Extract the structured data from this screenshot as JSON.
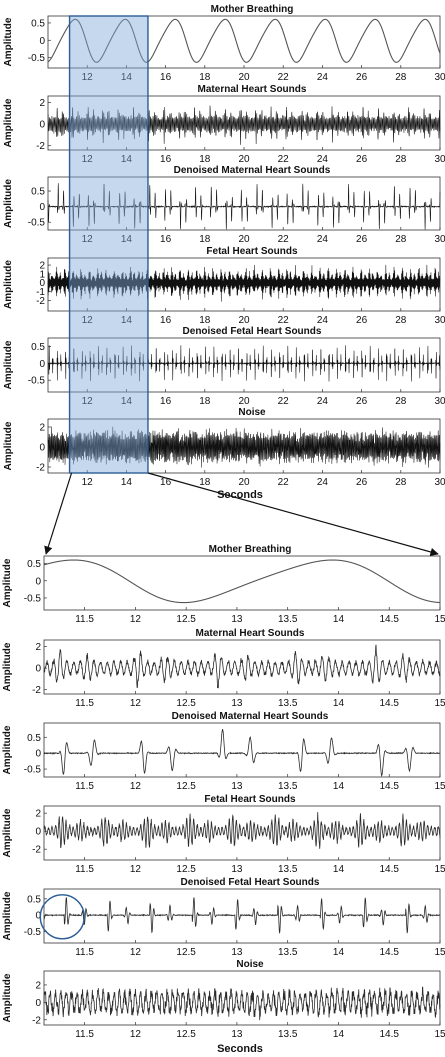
{
  "figure": {
    "xlabel_top": "Seconds",
    "xlabel_bottom": "Seconds",
    "colors": {
      "trace": "#111111",
      "trace_zoom": "#2a2a2a",
      "breath": "#555555",
      "highlight_fill": "#7fa8d6",
      "highlight_stroke": "#2b5d96",
      "circle": "#2b5d96",
      "frame": "#333333"
    }
  },
  "chart_data": [
    {
      "type": "line",
      "panel": "overview",
      "title": "Mother Breathing",
      "ylabel": "Amplitude",
      "xlim": [
        10,
        30
      ],
      "ylim": [
        -0.8,
        0.7
      ],
      "xticks": [
        12,
        14,
        16,
        18,
        20,
        22,
        24,
        26,
        28,
        30
      ],
      "yticks": [
        0.5,
        0,
        -0.5
      ],
      "signal": "breathing",
      "highlight": [
        11.1,
        15.1
      ]
    },
    {
      "type": "line",
      "panel": "overview",
      "title": "Maternal Heart Sounds",
      "ylabel": "Amplitude",
      "xlim": [
        10,
        30
      ],
      "ylim": [
        -2.4,
        2.6
      ],
      "xticks": [
        12,
        14,
        16,
        18,
        20,
        22,
        24,
        26,
        28,
        30
      ],
      "yticks": [
        2,
        0,
        -2
      ],
      "signal": "maternal_heart",
      "highlight": [
        11.1,
        15.1
      ]
    },
    {
      "type": "line",
      "panel": "overview",
      "title": "Denoised Maternal Heart Sounds",
      "ylabel": "Amplitude",
      "xlim": [
        10,
        30
      ],
      "ylim": [
        -0.75,
        0.95
      ],
      "xticks": [
        12,
        14,
        16,
        18,
        20,
        22,
        24,
        26,
        28,
        30
      ],
      "yticks": [
        0.5,
        0,
        -0.5
      ],
      "signal": "denoised_maternal",
      "highlight": [
        11.1,
        15.1
      ]
    },
    {
      "type": "line",
      "panel": "overview",
      "title": "Fetal Heart Sounds",
      "ylabel": "Amplitude",
      "xlim": [
        10,
        30
      ],
      "ylim": [
        -3.2,
        2.8
      ],
      "xticks": [
        12,
        14,
        16,
        18,
        20,
        22,
        24,
        26,
        28,
        30
      ],
      "yticks": [
        2,
        1,
        0,
        -1,
        -2
      ],
      "signal": "fetal_heart",
      "highlight": [
        11.1,
        15.1
      ]
    },
    {
      "type": "line",
      "panel": "overview",
      "title": "Denoised Fetal Heart Sounds",
      "ylabel": "Amplitude",
      "xlim": [
        10,
        30
      ],
      "ylim": [
        -0.85,
        0.75
      ],
      "xticks": [
        12,
        14,
        16,
        18,
        20,
        22,
        24,
        26,
        28,
        30
      ],
      "yticks": [
        0.5,
        0,
        -0.5
      ],
      "signal": "denoised_fetal",
      "highlight": [
        11.1,
        15.1
      ]
    },
    {
      "type": "line",
      "panel": "overview",
      "title": "Noise",
      "ylabel": "Amplitude",
      "xlim": [
        10,
        30
      ],
      "ylim": [
        -2.6,
        2.8
      ],
      "xticks": [
        12,
        14,
        16,
        18,
        20,
        22,
        24,
        26,
        28,
        30
      ],
      "yticks": [
        2,
        0,
        -2
      ],
      "signal": "noise",
      "highlight": [
        11.1,
        15.1
      ]
    },
    {
      "type": "line",
      "panel": "zoom",
      "title": "Mother Breathing",
      "ylabel": "Amplitude",
      "xlim": [
        11.1,
        15
      ],
      "ylim": [
        -0.85,
        0.72
      ],
      "xticks": [
        11.5,
        12,
        12.5,
        13,
        13.5,
        14,
        14.5,
        15
      ],
      "yticks": [
        0.5,
        0,
        -0.5
      ],
      "signal": "breathing"
    },
    {
      "type": "line",
      "panel": "zoom",
      "title": "Maternal Heart Sounds",
      "ylabel": "Amplitude",
      "xlim": [
        11.1,
        15
      ],
      "ylim": [
        -2.4,
        2.6
      ],
      "xticks": [
        11.5,
        12,
        12.5,
        13,
        13.5,
        14,
        14.5,
        15
      ],
      "yticks": [
        2,
        0,
        -2
      ],
      "signal": "maternal_heart"
    },
    {
      "type": "line",
      "panel": "zoom",
      "title": "Denoised Maternal Heart Sounds",
      "ylabel": "Amplitude",
      "xlim": [
        11.1,
        15
      ],
      "ylim": [
        -0.75,
        0.95
      ],
      "xticks": [
        11.5,
        12,
        12.5,
        13,
        13.5,
        14,
        14.5,
        15
      ],
      "yticks": [
        0.5,
        0,
        -0.5
      ],
      "signal": "denoised_maternal"
    },
    {
      "type": "line",
      "panel": "zoom",
      "title": "Fetal Heart Sounds",
      "ylabel": "Amplitude",
      "xlim": [
        11.1,
        15
      ],
      "ylim": [
        -3.2,
        2.8
      ],
      "xticks": [
        11.5,
        12,
        12.5,
        13,
        13.5,
        14,
        14.5,
        15
      ],
      "yticks": [
        2,
        0,
        -2
      ],
      "signal": "fetal_heart"
    },
    {
      "type": "line",
      "panel": "zoom",
      "title": "Denoised Fetal Heart Sounds",
      "ylabel": "Amplitude",
      "xlim": [
        11.1,
        15
      ],
      "ylim": [
        -0.85,
        0.8
      ],
      "xticks": [
        11.5,
        12,
        12.5,
        13,
        13.5,
        14,
        14.5,
        15
      ],
      "yticks": [
        0.5,
        0,
        -0.5
      ],
      "signal": "denoised_fetal",
      "circle_center": [
        11.28,
        -0.05
      ]
    },
    {
      "type": "line",
      "panel": "zoom",
      "title": "Noise",
      "ylabel": "Amplitude",
      "xlim": [
        11.1,
        15
      ],
      "ylim": [
        -2.6,
        3.6
      ],
      "xticks": [
        11.5,
        12,
        12.5,
        13,
        13.5,
        14,
        14.5,
        15
      ],
      "yticks": [
        2,
        0,
        -2
      ],
      "signal": "noise"
    }
  ]
}
